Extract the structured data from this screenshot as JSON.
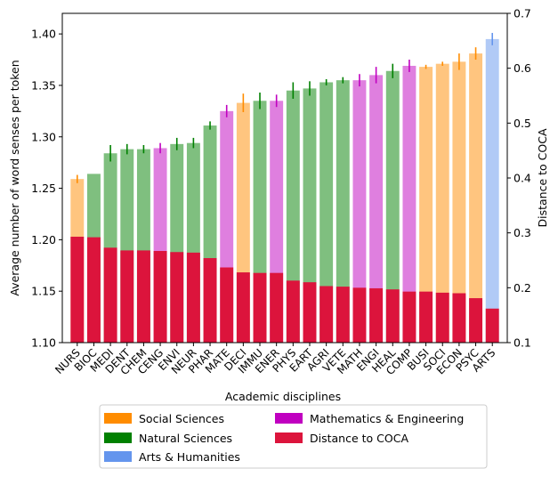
{
  "chart_data": {
    "type": "bar",
    "xlabel": "Academic disciplines",
    "ylabel": "Average number of word senses per token",
    "y2label": "Distance to COCA",
    "ylim": [
      1.1,
      1.42
    ],
    "y2lim": [
      0.1,
      0.7
    ],
    "yticks": [
      "1.10",
      "1.15",
      "1.20",
      "1.25",
      "1.30",
      "1.35",
      "1.40"
    ],
    "y2ticks": [
      "0.1",
      "0.2",
      "0.3",
      "0.4",
      "0.5",
      "0.6",
      "0.7"
    ],
    "grid": false,
    "legend_position": "bottom",
    "categories": [
      "NURS",
      "BIOC",
      "MEDI",
      "DENT",
      "CHEM",
      "CENG",
      "ENVI",
      "NEUR",
      "PHAR",
      "MATE",
      "DECI",
      "IMMU",
      "ENER",
      "PHYS",
      "EART",
      "AGRI",
      "VETE",
      "MATH",
      "ENGI",
      "HEAL",
      "COMP",
      "BUSI",
      "SOCI",
      "ECON",
      "PSYC",
      "ARTS"
    ],
    "groups": [
      "social",
      "natural",
      "natural",
      "natural",
      "natural",
      "math",
      "natural",
      "natural",
      "natural",
      "math",
      "social",
      "natural",
      "math",
      "natural",
      "natural",
      "natural",
      "natural",
      "math",
      "math",
      "natural",
      "math",
      "social",
      "social",
      "social",
      "social",
      "arts"
    ],
    "senses_per_token": [
      1.259,
      1.264,
      1.284,
      1.288,
      1.288,
      1.289,
      1.293,
      1.294,
      1.311,
      1.325,
      1.333,
      1.335,
      1.335,
      1.345,
      1.347,
      1.353,
      1.355,
      1.355,
      1.36,
      1.364,
      1.369,
      1.368,
      1.371,
      1.373,
      1.381,
      1.395
    ],
    "senses_error": [
      0.004,
      0.0,
      0.008,
      0.005,
      0.004,
      0.005,
      0.006,
      0.005,
      0.004,
      0.006,
      0.009,
      0.008,
      0.006,
      0.008,
      0.007,
      0.003,
      0.003,
      0.006,
      0.008,
      0.007,
      0.006,
      0.002,
      0.002,
      0.008,
      0.006,
      0.006
    ],
    "distance_to_coca": [
      0.293,
      0.292,
      0.273,
      0.268,
      0.268,
      0.267,
      0.265,
      0.264,
      0.254,
      0.237,
      0.228,
      0.227,
      0.227,
      0.213,
      0.21,
      0.203,
      0.202,
      0.2,
      0.199,
      0.197,
      0.193,
      0.193,
      0.191,
      0.19,
      0.181,
      0.162
    ],
    "legend": [
      {
        "key": "social",
        "label": "Social Sciences"
      },
      {
        "key": "natural",
        "label": "Natural Sciences"
      },
      {
        "key": "arts",
        "label": "Arts & Humanities"
      },
      {
        "key": "math",
        "label": "Mathematics & Engineering"
      },
      {
        "key": "distance",
        "label": "Distance to COCA"
      }
    ],
    "colors": {
      "social": "#ff8c00",
      "natural": "#008000",
      "arts": "#6495ed",
      "math": "#c000c0",
      "distance": "#dc143c"
    },
    "bar_alpha": 0.5
  }
}
